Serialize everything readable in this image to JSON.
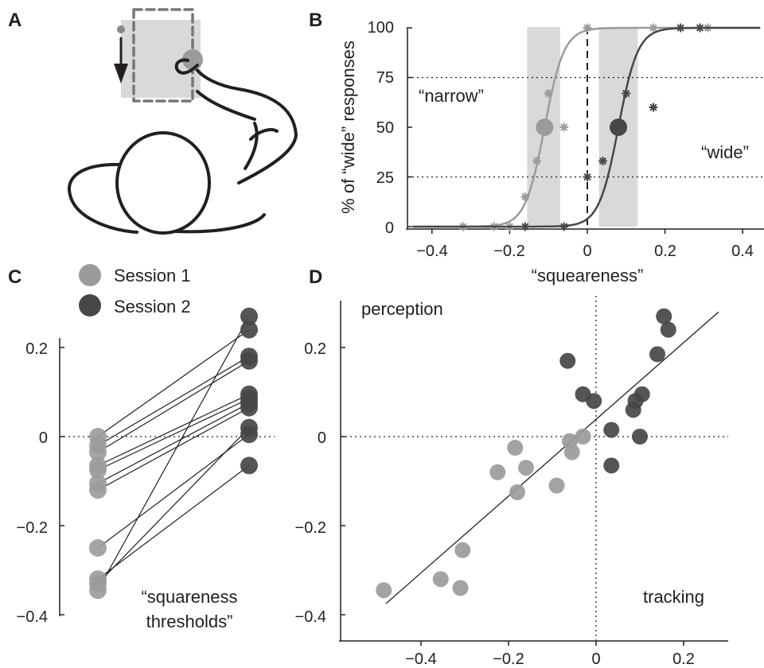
{
  "panels": {
    "a": "A",
    "b": "B",
    "c": "C",
    "d": "D"
  },
  "colors": {
    "session1": "#9b9b9b",
    "session2": "#474747",
    "shade": "#d9d9d9",
    "ink": "#231f20"
  },
  "panel_b": {
    "ylabel": "% of “wide” responses",
    "xlabel": "“squeareness”",
    "label_narrow": "“narrow”",
    "label_wide": "“wide”",
    "yticks": [
      "0",
      "25",
      "50",
      "75",
      "100"
    ],
    "xticks": [
      "−0.4",
      "−0.2",
      "0",
      "0.2",
      "0.4"
    ]
  },
  "panel_c": {
    "legend": [
      "Session 1",
      "Session 2"
    ],
    "yticks": [
      "0.2",
      "0",
      "−0.2",
      "−0.4"
    ],
    "annotation_line1": "“squareness",
    "annotation_line2": "thresholds”"
  },
  "panel_d": {
    "label_perception": "perception",
    "label_tracking": "tracking",
    "yticks": [
      "0.2",
      "0",
      "−0.2",
      "−0.4"
    ],
    "xticks": [
      "−0.4",
      "−0.2",
      "0",
      "0.2"
    ]
  },
  "chart_data": [
    {
      "panel": "B",
      "type": "line",
      "xlabel": "“squeareness”",
      "ylabel": "% of “wide” responses",
      "xlim": [
        -0.43,
        0.43
      ],
      "ylim": [
        0,
        100
      ],
      "series": [
        {
          "name": "Session 1",
          "kind": "psychometric",
          "threshold": -0.11,
          "slope": 40,
          "points": [
            [
              -0.32,
              0
            ],
            [
              -0.24,
              0
            ],
            [
              -0.2,
              0
            ],
            [
              -0.16,
              0
            ],
            [
              -0.16,
              15
            ],
            [
              -0.13,
              33
            ],
            [
              -0.1,
              67
            ],
            [
              -0.06,
              50
            ],
            [
              0,
              100
            ],
            [
              0.17,
              100
            ],
            [
              0.31,
              100
            ]
          ],
          "threshold_marker": [
            -0.11,
            50
          ],
          "shade": [
            -0.155,
            -0.07
          ]
        },
        {
          "name": "Session 2",
          "kind": "psychometric",
          "threshold": 0.08,
          "slope": 40,
          "points": [
            [
              -0.16,
              0
            ],
            [
              -0.06,
              0
            ],
            [
              0,
              25
            ],
            [
              0.04,
              33
            ],
            [
              0.1,
              67
            ],
            [
              0.17,
              60
            ],
            [
              0.24,
              100
            ],
            [
              0.29,
              100
            ]
          ],
          "threshold_marker": [
            0.08,
            50
          ],
          "shade": [
            0.03,
            0.13
          ]
        }
      ],
      "reference_lines": {
        "y": [
          25,
          75
        ],
        "x": [
          0
        ]
      }
    },
    {
      "panel": "C",
      "type": "scatter",
      "ylim": [
        -0.4,
        0.2
      ],
      "categories": [
        "Session 1",
        "Session 2"
      ],
      "pairs": [
        [
          0.0,
          0.27
        ],
        [
          -0.02,
          0.24
        ],
        [
          -0.035,
          0.18
        ],
        [
          -0.065,
          0.17
        ],
        [
          -0.075,
          0.095
        ],
        [
          -0.105,
          0.085
        ],
        [
          -0.12,
          0.075
        ],
        [
          -0.25,
          0.065
        ],
        [
          -0.32,
          0.02
        ],
        [
          -0.33,
          0.005
        ],
        [
          -0.345,
          -0.065
        ]
      ],
      "links": [
        [
          0,
          1
        ],
        [
          1,
          2
        ],
        [
          2,
          3
        ],
        [
          3,
          4
        ],
        [
          4,
          5
        ],
        [
          5,
          6
        ],
        [
          6,
          7
        ],
        [
          7,
          9
        ],
        [
          8,
          10
        ],
        [
          9,
          8
        ],
        [
          10,
          0
        ]
      ]
    },
    {
      "panel": "D",
      "type": "scatter",
      "xlim": [
        -0.55,
        0.29
      ],
      "ylim": [
        -0.45,
        0.3
      ],
      "series": [
        {
          "name": "Session 1",
          "points": [
            [
              -0.485,
              -0.345
            ],
            [
              -0.355,
              -0.32
            ],
            [
              -0.31,
              -0.34
            ],
            [
              -0.305,
              -0.255
            ],
            [
              -0.225,
              -0.08
            ],
            [
              -0.185,
              -0.025
            ],
            [
              -0.18,
              -0.125
            ],
            [
              -0.16,
              -0.07
            ],
            [
              -0.09,
              -0.11
            ],
            [
              -0.06,
              -0.01
            ],
            [
              -0.055,
              -0.035
            ],
            [
              -0.03,
              0.0
            ]
          ]
        },
        {
          "name": "Session 2",
          "points": [
            [
              -0.065,
              0.17
            ],
            [
              -0.03,
              0.095
            ],
            [
              -0.005,
              0.08
            ],
            [
              0.035,
              0.015
            ],
            [
              0.035,
              -0.065
            ],
            [
              0.085,
              0.06
            ],
            [
              0.09,
              0.08
            ],
            [
              0.1,
              0.0
            ],
            [
              0.105,
              0.095
            ],
            [
              0.14,
              0.185
            ],
            [
              0.155,
              0.27
            ],
            [
              0.165,
              0.24
            ]
          ]
        }
      ],
      "regression": {
        "x": [
          -0.48,
          0.28
        ],
        "y": [
          -0.375,
          0.28
        ]
      },
      "reference_lines": {
        "x": [
          0
        ],
        "y": [
          0
        ]
      }
    }
  ]
}
